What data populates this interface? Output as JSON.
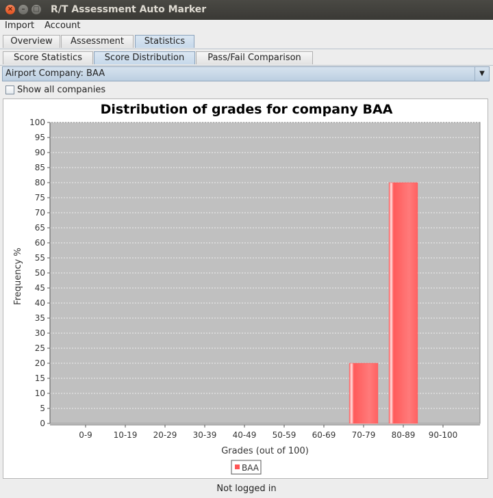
{
  "window": {
    "title": "R/T Assessment Auto Marker"
  },
  "menubar": {
    "items": [
      "Import",
      "Account"
    ]
  },
  "main_tabs": [
    {
      "label": "Overview",
      "active": false
    },
    {
      "label": "Assessment",
      "active": false
    },
    {
      "label": "Statistics",
      "active": true
    }
  ],
  "sub_tabs": [
    {
      "label": "Score Statistics",
      "active": false
    },
    {
      "label": "Score Distribution",
      "active": true
    },
    {
      "label": "Pass/Fail Comparison",
      "active": false
    }
  ],
  "company_select": {
    "value": "Airport Company: BAA"
  },
  "show_all": {
    "label": "Show all companies",
    "checked": false
  },
  "chart_data": {
    "type": "bar",
    "title": "Distribution of grades for company BAA",
    "xlabel": "Grades (out of 100)",
    "ylabel": "Frequency %",
    "categories": [
      "0-9",
      "10-19",
      "20-29",
      "30-39",
      "40-49",
      "50-59",
      "60-69",
      "70-79",
      "80-89",
      "90-100"
    ],
    "series": [
      {
        "name": "BAA",
        "values": [
          0,
          0,
          0,
          0,
          0,
          0,
          0,
          20,
          80,
          0
        ],
        "color": "#ff5555"
      }
    ],
    "ylim": [
      0,
      100
    ],
    "ytick_step": 5,
    "grid": true,
    "legend": "bottom",
    "plot_background": "#c0c0c0"
  },
  "status": {
    "text": "Not logged in"
  }
}
